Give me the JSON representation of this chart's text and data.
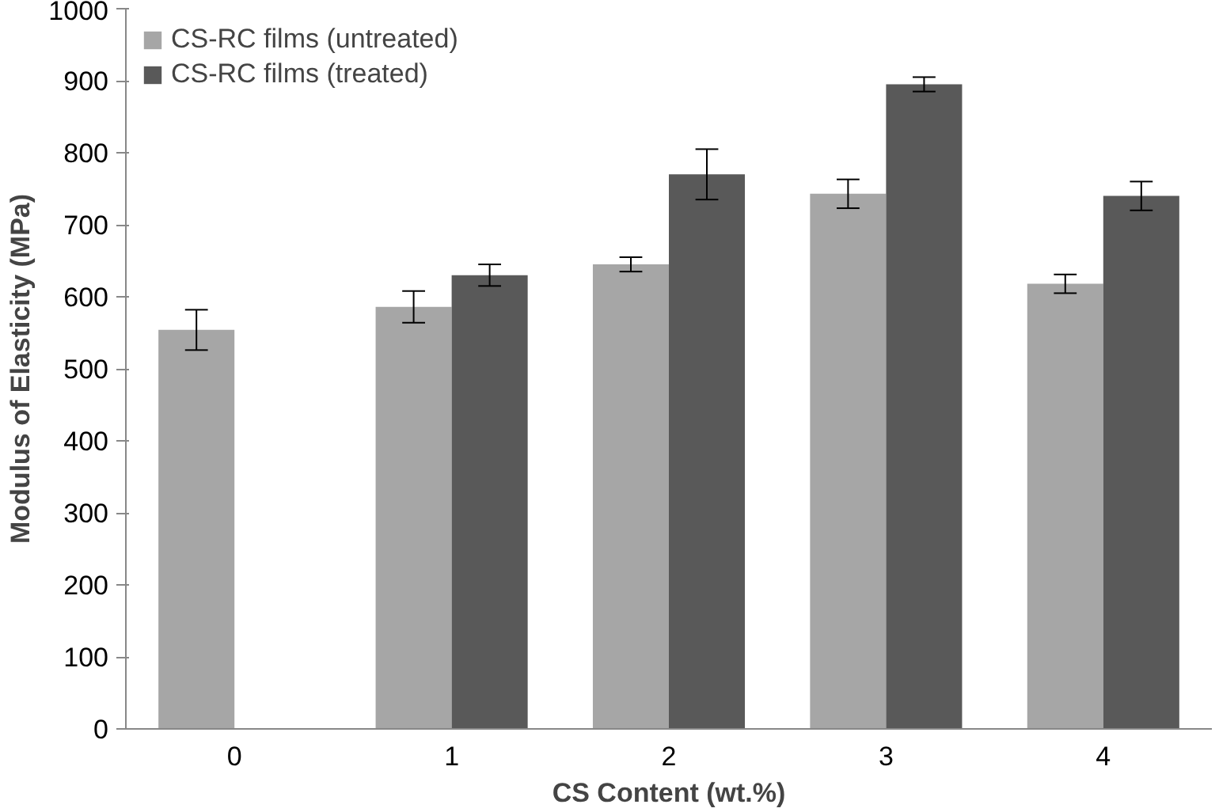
{
  "chart_data": {
    "type": "bar",
    "xlabel": "CS Content (wt.%)",
    "ylabel": "Modulus of Elasticity (MPa)",
    "categories": [
      "0",
      "1",
      "2",
      "3",
      "4"
    ],
    "series": [
      {
        "name": "CS-RC films (untreated)",
        "color": "#a6a6a6",
        "values": [
          554,
          586,
          645,
          743,
          618
        ],
        "errors": [
          28,
          22,
          10,
          20,
          13
        ]
      },
      {
        "name": "CS-RC films (treated)",
        "color": "#595959",
        "values": [
          null,
          630,
          770,
          895,
          740
        ],
        "errors": [
          null,
          15,
          35,
          10,
          20
        ]
      }
    ],
    "ylim": [
      0,
      1000
    ],
    "yticks": [
      0,
      100,
      200,
      300,
      400,
      500,
      600,
      700,
      800,
      900,
      1000
    ],
    "grid": false,
    "legend": "top left"
  }
}
